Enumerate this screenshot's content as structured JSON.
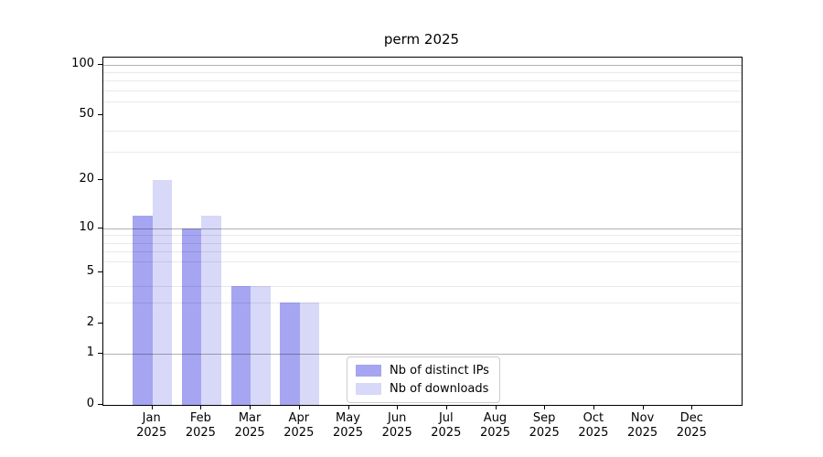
{
  "chart_data": {
    "type": "bar",
    "title": "perm 2025",
    "categories": [
      "Jan",
      "Feb",
      "Mar",
      "Apr",
      "May",
      "Jun",
      "Jul",
      "Aug",
      "Sep",
      "Oct",
      "Nov",
      "Dec"
    ],
    "year_label": "2025",
    "series": [
      {
        "name": "Nb of distinct IPs",
        "color": "#a5a5f1",
        "values": [
          12,
          10,
          4,
          3,
          0,
          0,
          0,
          0,
          0,
          0,
          0,
          0
        ]
      },
      {
        "name": "Nb of downloads",
        "color": "#d8d8f9",
        "values": [
          20,
          12,
          4,
          3,
          0,
          0,
          0,
          0,
          0,
          0,
          0,
          0
        ]
      }
    ],
    "yscale": "log1p",
    "yticks": [
      0,
      1,
      2,
      5,
      10,
      20,
      50,
      100
    ],
    "ylim": [
      0,
      110
    ],
    "major_gridlines": [
      1,
      10,
      100
    ],
    "minor_gridlines": [
      3,
      4,
      6,
      7,
      8,
      9,
      30,
      40,
      60,
      70,
      80,
      90
    ],
    "grid": true,
    "legend_position": "lower center-right inside plot",
    "xlabel": "",
    "ylabel": ""
  }
}
